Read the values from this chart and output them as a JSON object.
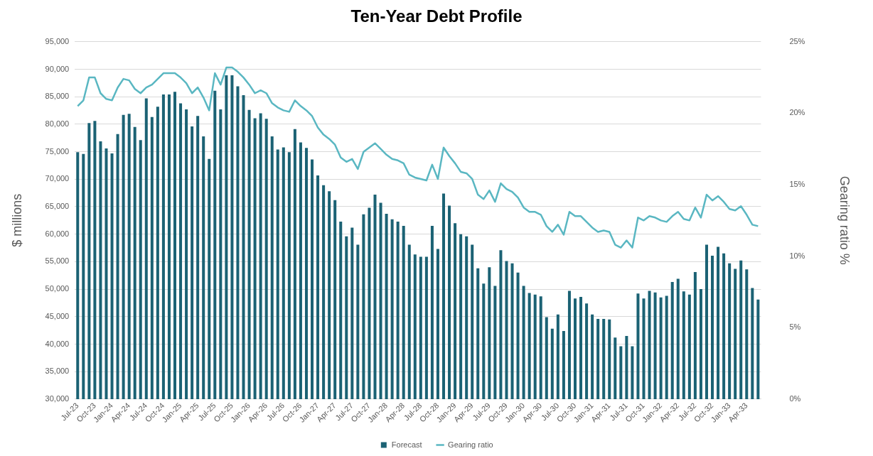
{
  "chart_data": {
    "type": "bar",
    "title": "Ten-Year Debt Profile",
    "ylabel": "$ millions",
    "y2label": "Gearing ratio %",
    "categories": [
      "Jul-23",
      null,
      null,
      "Oct-23",
      null,
      null,
      "Jan-24",
      null,
      null,
      "Apr-24",
      null,
      null,
      "Jul-24",
      null,
      null,
      "Oct-24",
      null,
      null,
      "Jan-25",
      null,
      null,
      "Apr-25",
      null,
      null,
      "Jul-25",
      null,
      null,
      "Oct-25",
      null,
      null,
      "Jan-26",
      null,
      null,
      "Apr-26",
      null,
      null,
      "Jul-26",
      null,
      null,
      "Oct-26",
      null,
      null,
      "Jan-27",
      null,
      null,
      "Apr-27",
      null,
      null,
      "Jul-27",
      null,
      null,
      "Oct-27",
      null,
      null,
      "Jan-28",
      null,
      null,
      "Apr-28",
      null,
      null,
      "Jul-28",
      null,
      null,
      "Oct-28",
      null,
      null,
      "Jan-29",
      null,
      null,
      "Apr-29",
      null,
      null,
      "Jul-29",
      null,
      null,
      "Oct-29",
      null,
      null,
      "Jan-30",
      null,
      null,
      "Apr-30",
      null,
      null,
      "Jul-30",
      null,
      null,
      "Oct-30",
      null,
      null,
      "Jan-31",
      null,
      null,
      "Apr-31",
      null,
      null,
      "Jul-31",
      null,
      null,
      "Oct-31",
      null,
      null,
      "Jan-32",
      null,
      null,
      "Apr-32",
      null,
      null,
      "Jul-32",
      null,
      null,
      "Oct-32",
      null,
      null,
      "Jan-33",
      null,
      null,
      "Apr-33",
      null,
      null
    ],
    "series": [
      {
        "name": "Forecast",
        "color": "#1b6274",
        "values": [
          74900,
          74600,
          80200,
          80600,
          76900,
          75600,
          74700,
          78200,
          81700,
          81900,
          79500,
          77100,
          84700,
          81300,
          83200,
          85400,
          85400,
          85900,
          83800,
          82700,
          79600,
          81500,
          77800,
          73700,
          86100,
          82700,
          88900,
          88900,
          86900,
          85300,
          82600,
          81100,
          82000,
          81000,
          77800,
          75400,
          75800,
          74900,
          79100,
          76700,
          75700,
          73600,
          70700,
          68900,
          67800,
          66200,
          62300,
          59600,
          61200,
          58100,
          63600,
          64800,
          67200,
          65700,
          63700,
          62700,
          62300,
          61500,
          58100,
          56300,
          55900,
          55900,
          61500,
          57300,
          67400,
          65200,
          62000,
          60000,
          59600,
          58100,
          53800,
          51000,
          54000,
          50600,
          57100,
          55100,
          54700,
          53000,
          50600,
          49300,
          49000,
          48700,
          44900,
          42800,
          45400,
          42400,
          49700,
          48300,
          48600,
          47400,
          45400,
          44600,
          44600,
          44500,
          41200,
          39600,
          41500,
          39600,
          49200,
          48300,
          49700,
          49400,
          48500,
          48800,
          51300,
          51900,
          49600,
          49000,
          53100,
          50000,
          58100,
          56100,
          57700,
          56500,
          54700,
          53700,
          55200,
          53600,
          50200,
          48100
        ]
      },
      {
        "name": "Gearing ratio",
        "type": "line",
        "axis": "y2",
        "color": "#5ab7c2",
        "values": [
          20.5,
          20.9,
          22.5,
          22.5,
          21.4,
          21.0,
          20.9,
          21.8,
          22.4,
          22.3,
          21.7,
          21.4,
          21.8,
          22.0,
          22.4,
          22.8,
          22.8,
          22.8,
          22.5,
          22.1,
          21.4,
          21.8,
          21.1,
          20.2,
          22.8,
          22.0,
          23.2,
          23.2,
          22.9,
          22.5,
          22.0,
          21.4,
          21.6,
          21.4,
          20.7,
          20.4,
          20.2,
          20.1,
          20.9,
          20.5,
          20.2,
          19.8,
          19.0,
          18.5,
          18.2,
          17.8,
          16.9,
          16.6,
          16.8,
          16.1,
          17.3,
          17.6,
          17.9,
          17.5,
          17.1,
          16.8,
          16.7,
          16.5,
          15.7,
          15.5,
          15.4,
          15.3,
          16.4,
          15.4,
          17.6,
          17.0,
          16.5,
          15.9,
          15.8,
          15.4,
          14.3,
          14.0,
          14.6,
          13.8,
          15.1,
          14.7,
          14.5,
          14.1,
          13.4,
          13.1,
          13.1,
          12.9,
          12.1,
          11.7,
          12.2,
          11.5,
          13.1,
          12.8,
          12.8,
          12.4,
          12.0,
          11.7,
          11.8,
          11.7,
          10.8,
          10.6,
          11.1,
          10.6,
          12.7,
          12.5,
          12.8,
          12.7,
          12.5,
          12.4,
          12.8,
          13.1,
          12.6,
          12.5,
          13.4,
          12.7,
          14.3,
          13.9,
          14.2,
          13.8,
          13.3,
          13.2,
          13.5,
          12.9,
          12.2,
          12.1
        ]
      }
    ],
    "ylim": [
      30000,
      95000
    ],
    "yticks": [
      {
        "value": 30000,
        "label": "30,000"
      },
      {
        "value": 35000,
        "label": "35,000"
      },
      {
        "value": 40000,
        "label": "40,000"
      },
      {
        "value": 45000,
        "label": "45,000"
      },
      {
        "value": 50000,
        "label": "50,000"
      },
      {
        "value": 55000,
        "label": "55,000"
      },
      {
        "value": 60000,
        "label": "60,000"
      },
      {
        "value": 65000,
        "label": "65,000"
      },
      {
        "value": 70000,
        "label": "70,000"
      },
      {
        "value": 75000,
        "label": "75,000"
      },
      {
        "value": 80000,
        "label": "80,000"
      },
      {
        "value": 85000,
        "label": "85,000"
      },
      {
        "value": 90000,
        "label": "90,000"
      },
      {
        "value": 95000,
        "label": "95,000"
      }
    ],
    "y2lim": [
      0,
      25
    ],
    "y2ticks": [
      {
        "value": 0,
        "label": "0%"
      },
      {
        "value": 5,
        "label": "5%"
      },
      {
        "value": 10,
        "label": "10%"
      },
      {
        "value": 15,
        "label": "15%"
      },
      {
        "value": 20,
        "label": "20%"
      },
      {
        "value": 25,
        "label": "25%"
      }
    ],
    "grid": "y",
    "legend": "bottom",
    "marker": "none"
  }
}
